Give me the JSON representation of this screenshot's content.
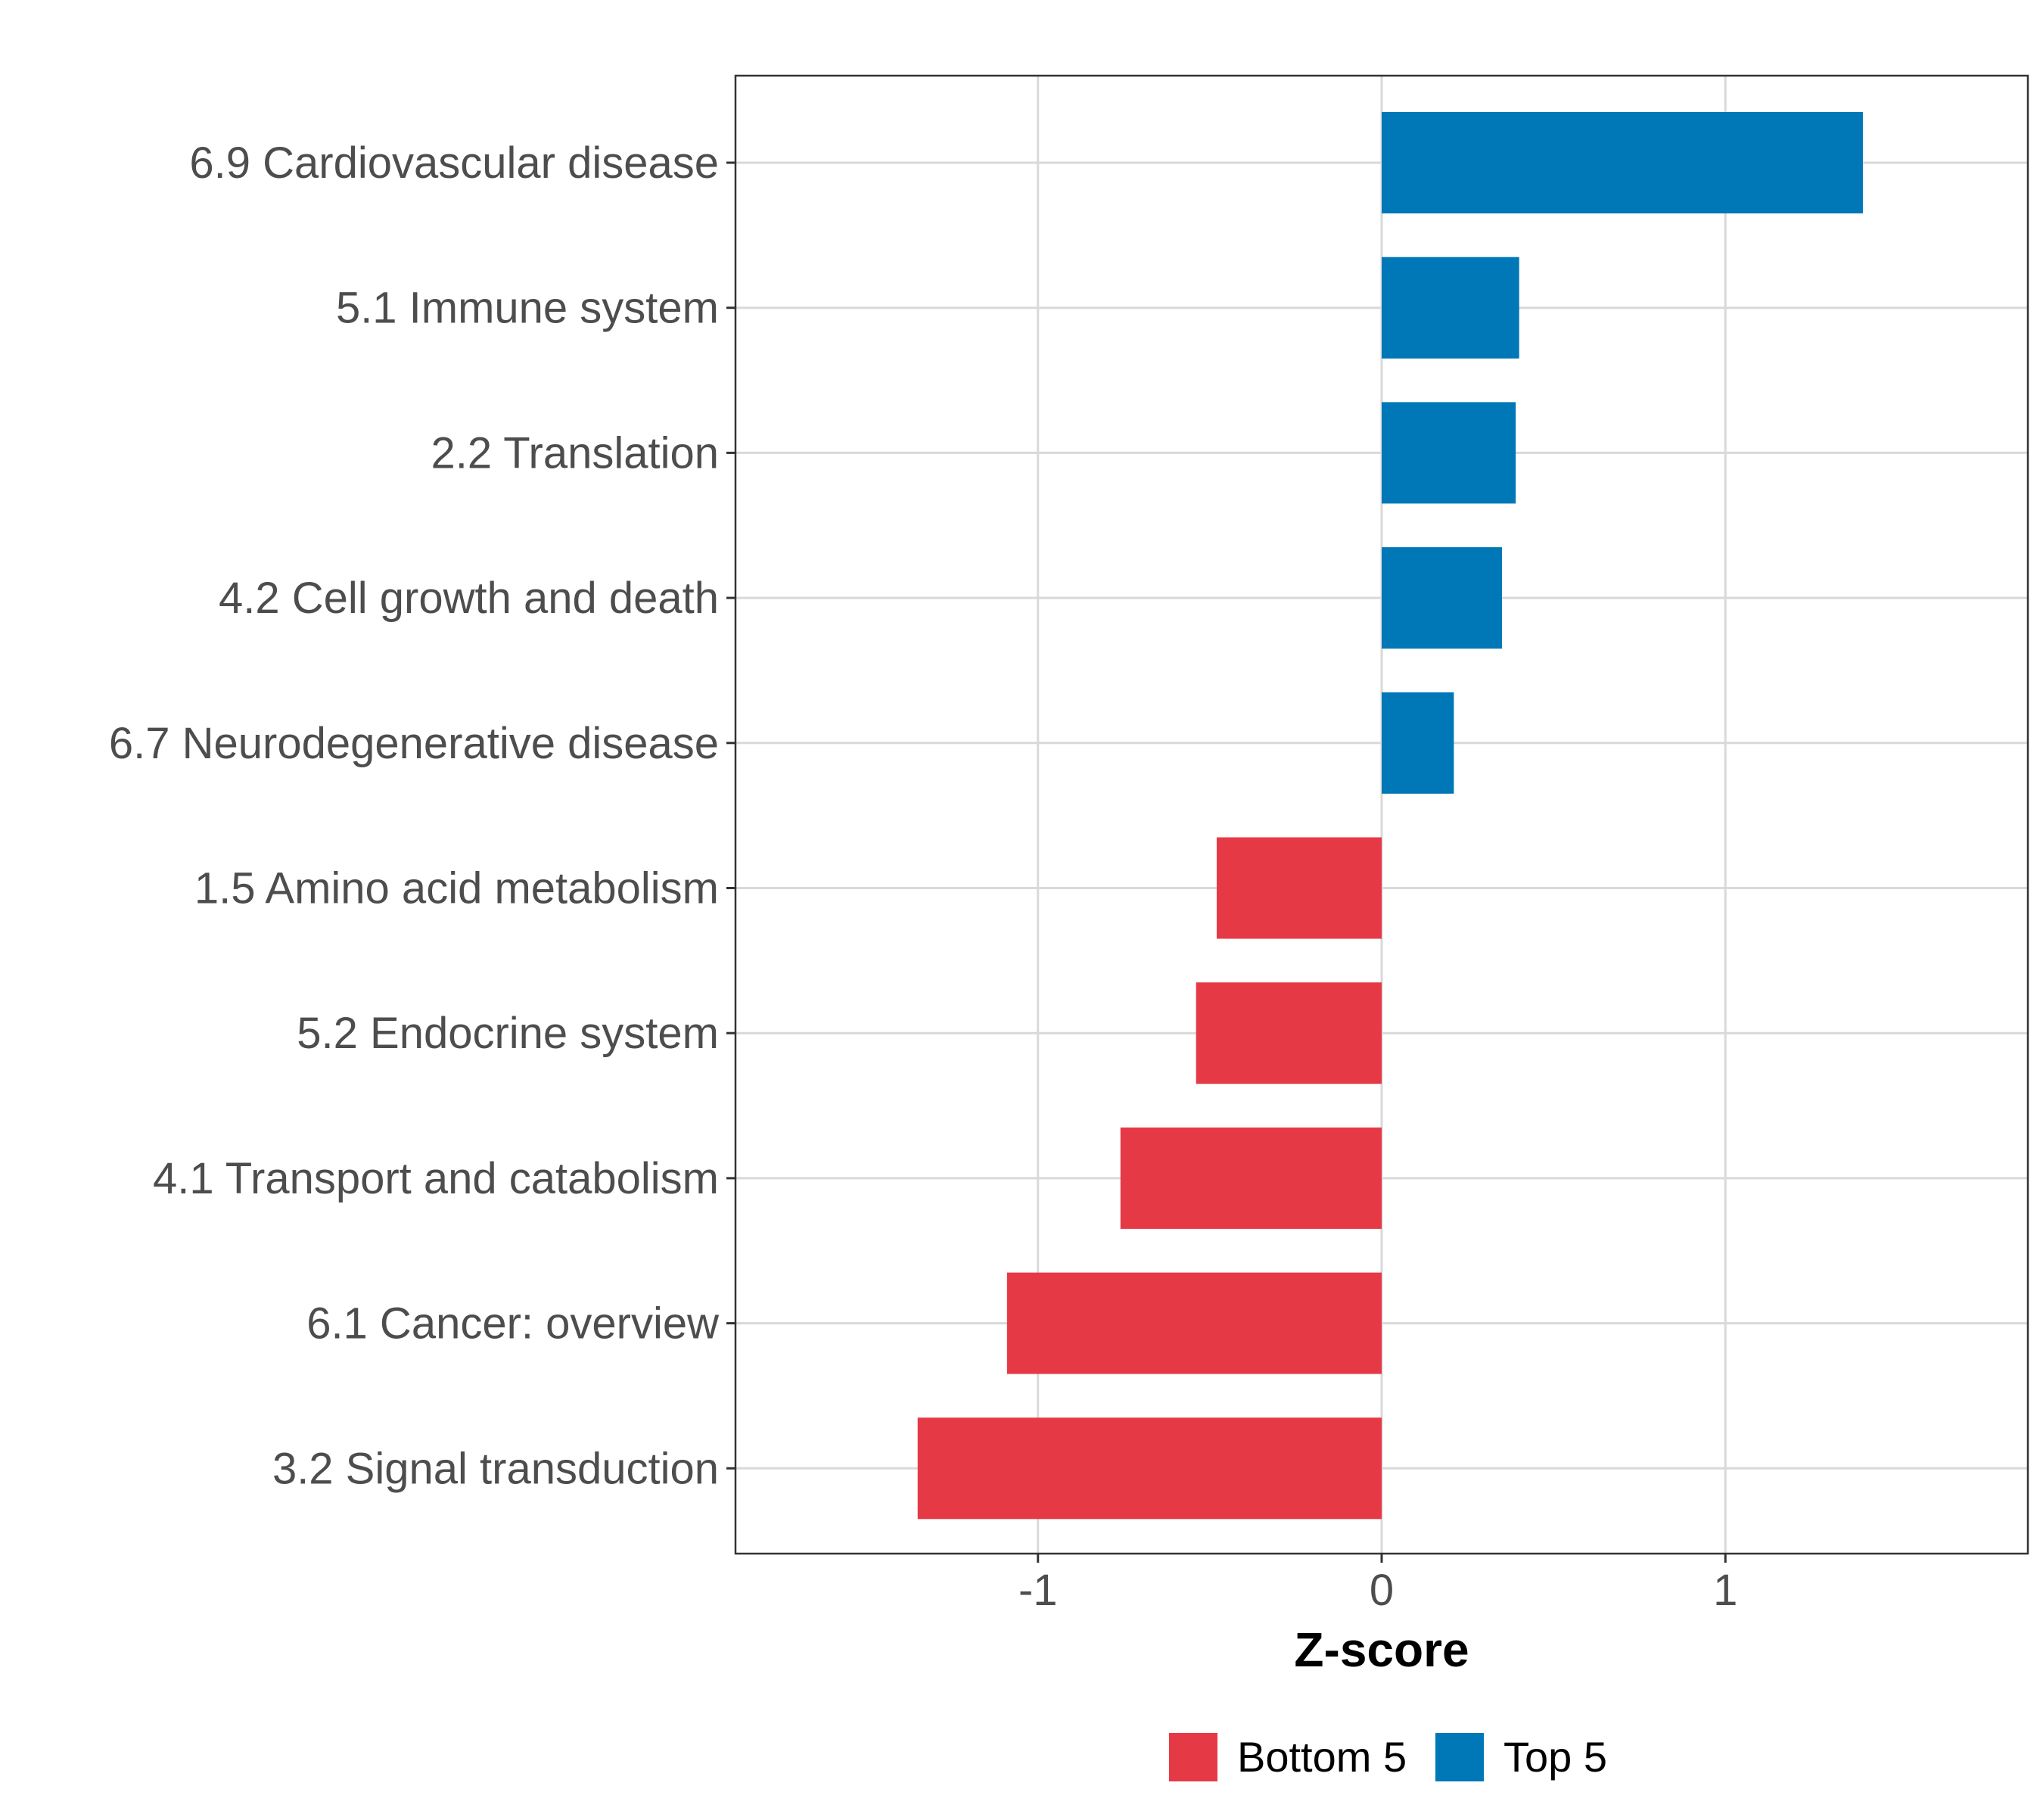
{
  "chart_data": {
    "type": "bar",
    "orientation": "horizontal",
    "title": "",
    "xlabel": "Z-score",
    "ylabel": "",
    "xlim": [
      -1.88,
      1.88
    ],
    "x_ticks": [
      -1,
      0,
      1
    ],
    "x_tick_labels": [
      "-1",
      "0",
      "1"
    ],
    "grid": true,
    "legend_position": "bottom",
    "categories": [
      "6.9 Cardiovascular disease",
      "5.1 Immune system",
      "2.2 Translation",
      "4.2 Cell growth and death",
      "6.7 Neurodegenerative disease",
      "1.5 Amino acid metabolism",
      "5.2 Endocrine system",
      "4.1 Transport and catabolism",
      "6.1 Cancer: overview",
      "3.2 Signal transduction"
    ],
    "values": [
      1.4,
      0.4,
      0.39,
      0.35,
      0.21,
      -0.48,
      -0.54,
      -0.76,
      -1.09,
      -1.35
    ],
    "groups": [
      "Top 5",
      "Top 5",
      "Top 5",
      "Top 5",
      "Top 5",
      "Bottom 5",
      "Bottom 5",
      "Bottom 5",
      "Bottom 5",
      "Bottom 5"
    ],
    "legend": [
      {
        "name": "Bottom 5",
        "color": "#E63946"
      },
      {
        "name": "Top 5",
        "color": "#0077B6"
      }
    ],
    "colors": {
      "Top 5": "#0077B6",
      "Bottom 5": "#E63946",
      "grid": "#D9D9D9",
      "axis_text": "#4D4D4D",
      "frame": "#333333"
    }
  }
}
